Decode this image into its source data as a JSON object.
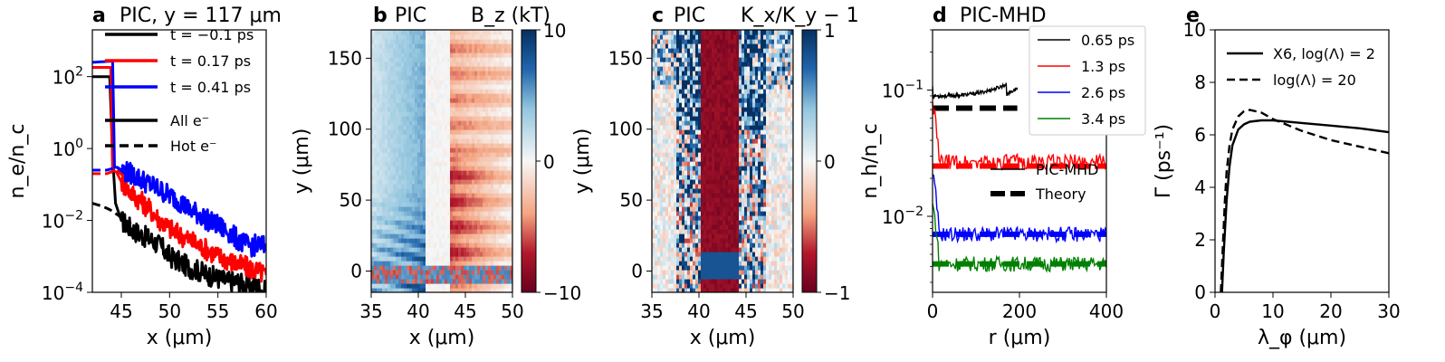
{
  "colors": {
    "black": "#000000",
    "red": "#ff0000",
    "blue": "#0000ff",
    "green": "#008000",
    "cmap_neg": "#67001f",
    "cmap_mid": "#f7f7f7",
    "cmap_pos": "#053061"
  },
  "chart_data": [
    {
      "id": "a",
      "type": "line",
      "letter": "a",
      "title": "PIC, y = 117 μm",
      "xlabel": "x (μm)",
      "ylabel": "n_e/n_c",
      "xlim": [
        42,
        60
      ],
      "ylim": [
        0.0001,
        2000
      ],
      "yscale": "log",
      "x_ticks": [
        "45",
        "50",
        "55",
        "60"
      ],
      "x_tick_values": [
        45,
        50,
        55,
        60
      ],
      "y_ticks": [
        {
          "value": 100,
          "base": "10",
          "exp": "2"
        },
        {
          "value": 1,
          "base": "10",
          "exp": "0"
        },
        {
          "value": 0.01,
          "base": "10",
          "exp": "−2"
        },
        {
          "value": 0.0001,
          "base": "10",
          "exp": "−4"
        }
      ],
      "legend_position": "upper-right",
      "legend": [
        {
          "label": "t = −0.1 ps",
          "color": "#000000",
          "style": "solid"
        },
        {
          "label": "t = 0.17 ps",
          "color": "#ff0000",
          "style": "solid"
        },
        {
          "label": "t = 0.41 ps",
          "color": "#0000ff",
          "style": "solid"
        },
        {
          "label": "All e⁻",
          "color": "#000000",
          "style": "solid"
        },
        {
          "label": "Hot e⁻",
          "color": "#000000",
          "style": "dashed"
        }
      ],
      "series": [
        {
          "name": "t = −0.1 ps",
          "color": "#000000",
          "style": "solid",
          "x": [
            42,
            43.8,
            44.1,
            44.4,
            45,
            46,
            47,
            48,
            49,
            50,
            51,
            52,
            53,
            54,
            55,
            56,
            57,
            58,
            59,
            60
          ],
          "y": [
            100,
            100,
            0.6,
            0.03,
            0.01,
            0.006,
            0.004,
            0.003,
            0.002,
            0.001,
            0.0007,
            0.0005,
            0.0004,
            0.0003,
            0.00025,
            0.0002,
            0.0002,
            0.00015,
            0.00015,
            0.0001
          ]
        },
        {
          "name": "t = 0.17 ps",
          "color": "#ff0000",
          "style": "solid",
          "x": [
            42,
            43.9,
            44.1,
            44.5,
            45,
            46,
            47,
            48,
            49,
            50,
            51,
            52,
            53,
            54,
            55,
            56,
            57,
            58,
            59,
            60
          ],
          "y": [
            180,
            180,
            0.25,
            0.22,
            0.12,
            0.06,
            0.035,
            0.02,
            0.01,
            0.006,
            0.004,
            0.003,
            0.002,
            0.0015,
            0.001,
            0.0008,
            0.0006,
            0.0005,
            0.0004,
            0.0003
          ]
        },
        {
          "name": "t = 0.41 ps",
          "color": "#0000ff",
          "style": "solid",
          "x": [
            42,
            44.1,
            44.3,
            44.6,
            45,
            46,
            47,
            48,
            49,
            50,
            51,
            52,
            53,
            54,
            55,
            56,
            57,
            58,
            59,
            60
          ],
          "y": [
            250,
            270,
            0.3,
            0.3,
            0.25,
            0.2,
            0.14,
            0.1,
            0.07,
            0.05,
            0.035,
            0.02,
            0.015,
            0.01,
            0.007,
            0.005,
            0.003,
            0.002,
            0.002,
            0.002
          ]
        },
        {
          "name": "hot-black",
          "color": "#000000",
          "style": "dashed",
          "x": [
            42,
            43,
            43.8,
            44.5,
            46
          ],
          "y": [
            0.03,
            0.025,
            0.02,
            0.015,
            0.008
          ]
        },
        {
          "name": "hot-red",
          "color": "#ff0000",
          "style": "dashed",
          "x": [
            42,
            43.5,
            44.5,
            45.5
          ],
          "y": [
            0.2,
            0.2,
            0.25,
            0.15
          ]
        },
        {
          "name": "hot-blue",
          "color": "#0000ff",
          "style": "dashed",
          "x": [
            42,
            43.5,
            44.5,
            45.5
          ],
          "y": [
            0.25,
            0.25,
            0.3,
            0.2
          ]
        }
      ]
    },
    {
      "id": "b",
      "type": "heatmap",
      "letter": "b",
      "title": "PIC",
      "field_label": "B_z (kT)",
      "xlabel": "x (μm)",
      "ylabel": "y (μm)",
      "xlim": [
        35,
        50
      ],
      "ylim": [
        -15,
        170
      ],
      "x_ticks": [
        "35",
        "40",
        "45",
        "50"
      ],
      "x_tick_values": [
        35,
        40,
        45,
        50
      ],
      "y_ticks": [
        "0",
        "50",
        "100",
        "150"
      ],
      "y_tick_values": [
        0,
        50,
        100,
        150
      ],
      "colorbar": {
        "min": -10,
        "max": 10,
        "ticks": [
          "10",
          "0",
          "−10"
        ],
        "tick_values": [
          10,
          0,
          -10
        ]
      }
    },
    {
      "id": "c",
      "type": "heatmap",
      "letter": "c",
      "title": "PIC",
      "field_label": "K_x/K_y − 1",
      "xlabel": "x (μm)",
      "ylabel": "y (μm)",
      "xlim": [
        35,
        50
      ],
      "ylim": [
        -15,
        170
      ],
      "x_ticks": [
        "35",
        "40",
        "45",
        "50"
      ],
      "x_tick_values": [
        35,
        40,
        45,
        50
      ],
      "y_ticks": [
        "0",
        "50",
        "100",
        "150"
      ],
      "y_tick_values": [
        0,
        50,
        100,
        150
      ],
      "colorbar": {
        "min": -1,
        "max": 1,
        "ticks": [
          "1",
          "0",
          "−1"
        ],
        "tick_values": [
          1,
          0,
          -1
        ]
      }
    },
    {
      "id": "d",
      "type": "line",
      "letter": "d",
      "title": "PIC-MHD",
      "xlabel": "r (μm)",
      "ylabel": "n_h/n_c",
      "xlim": [
        0,
        400
      ],
      "ylim": [
        0.0025,
        0.3
      ],
      "yscale": "log",
      "x_ticks": [
        "0",
        "200",
        "400"
      ],
      "x_tick_values": [
        0,
        200,
        400
      ],
      "y_ticks": [
        {
          "value": 0.1,
          "base": "10",
          "exp": "−1"
        },
        {
          "value": 0.01,
          "base": "10",
          "exp": "−2"
        }
      ],
      "legend_position": "upper-right",
      "legend": [
        {
          "label": "0.65 ps",
          "color": "#000000",
          "style": "solid"
        },
        {
          "label": "1.3 ps",
          "color": "#ff0000",
          "style": "solid"
        },
        {
          "label": "2.6 ps",
          "color": "#0000ff",
          "style": "solid"
        },
        {
          "label": "3.4 ps",
          "color": "#008000",
          "style": "solid"
        }
      ],
      "legend2": [
        {
          "label": "PIC-MHD",
          "style": "thin"
        },
        {
          "label": "Theory",
          "style": "thick-dashed"
        }
      ],
      "series": [
        {
          "name": "0.65 ps",
          "color": "#000000",
          "level": 0.09,
          "x_end": 195,
          "kind": "pic"
        },
        {
          "name": "1.3 ps",
          "color": "#ff0000",
          "level": 0.027,
          "x_end": 400,
          "kind": "pic"
        },
        {
          "name": "2.6 ps",
          "color": "#0000ff",
          "level": 0.0072,
          "x_end": 400,
          "kind": "pic"
        },
        {
          "name": "3.4 ps",
          "color": "#008000",
          "level": 0.0042,
          "x_end": 400,
          "kind": "pic"
        }
      ],
      "theory": [
        {
          "color": "#000000",
          "y": 0.072,
          "x_start": 0,
          "x_end": 195
        },
        {
          "color": "#ff0000",
          "y": 0.025,
          "x_start": 0,
          "x_end": 400
        },
        {
          "color": "#0000ff",
          "y": 0.0072,
          "x_start": 0,
          "x_end": 400
        },
        {
          "color": "#008000",
          "y": 0.0042,
          "x_start": 0,
          "x_end": 400
        }
      ]
    },
    {
      "id": "e",
      "type": "line",
      "letter": "e",
      "title": "",
      "xlabel": "λ_φ (μm)",
      "ylabel": "Γ (ps⁻¹)",
      "xlim": [
        0,
        30
      ],
      "ylim": [
        0,
        10
      ],
      "x_ticks": [
        "0",
        "10",
        "20",
        "30"
      ],
      "x_tick_values": [
        0,
        10,
        20,
        30
      ],
      "y_ticks": [
        "0",
        "2",
        "4",
        "6",
        "8",
        "10"
      ],
      "y_tick_values": [
        0,
        2,
        4,
        6,
        8,
        10
      ],
      "legend_position": "upper-right",
      "legend": [
        {
          "label": "X6, log(Λ) = 2",
          "style": "solid"
        },
        {
          "label": "log(Λ) = 20",
          "style": "dashed"
        }
      ],
      "series": [
        {
          "name": "X6, log(Λ) = 2",
          "style": "solid",
          "x": [
            1.2,
            1.5,
            2,
            2.5,
            3,
            4,
            5,
            6,
            8,
            10,
            15,
            20,
            25,
            30
          ],
          "y": [
            0,
            1.5,
            3.5,
            4.8,
            5.6,
            6.2,
            6.4,
            6.5,
            6.55,
            6.55,
            6.45,
            6.35,
            6.25,
            6.1
          ]
        },
        {
          "name": "log(Λ) = 20",
          "style": "dashed",
          "x": [
            1.0,
            1.3,
            1.7,
            2,
            2.5,
            3,
            4,
            5,
            6,
            8,
            10,
            15,
            20,
            25,
            30
          ],
          "y": [
            0,
            1.5,
            3.5,
            4.6,
            5.6,
            6.2,
            6.7,
            6.9,
            6.95,
            6.85,
            6.6,
            6.15,
            5.8,
            5.55,
            5.3
          ]
        }
      ]
    }
  ]
}
